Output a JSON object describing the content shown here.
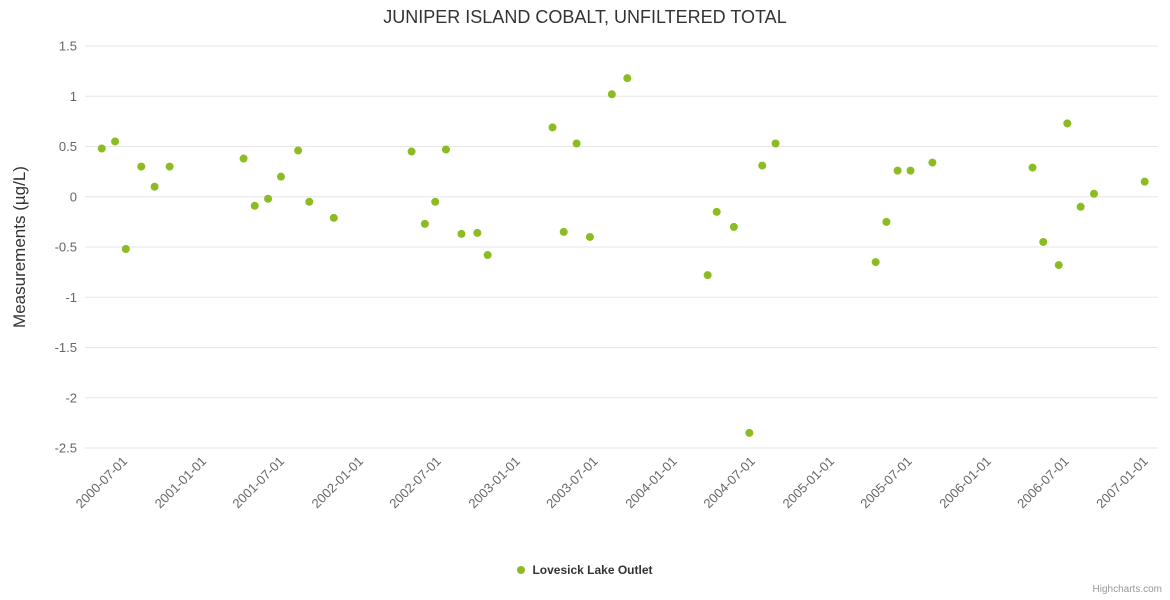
{
  "chart": {
    "title": "JUNIPER ISLAND COBALT, UNFILTERED TOTAL",
    "credits": "Highcharts.com",
    "accent": "#8bbc21"
  },
  "chart_data": {
    "type": "scatter",
    "title": "JUNIPER ISLAND COBALT, UNFILTERED TOTAL",
    "xlabel": "",
    "ylabel": "Measurements (µg/L)",
    "ylim": [
      -2.5,
      1.5
    ],
    "ytick_step": 0.5,
    "xlim": [
      "2000-04-01",
      "2007-02-01"
    ],
    "xticks": [
      "2000-07-01",
      "2001-01-01",
      "2001-07-01",
      "2002-01-01",
      "2002-07-01",
      "2003-01-01",
      "2003-07-01",
      "2004-01-01",
      "2004-07-01",
      "2005-01-01",
      "2005-07-01",
      "2006-01-01",
      "2006-07-01",
      "2007-01-01"
    ],
    "grid": "horizontal",
    "legend_position": "bottom",
    "series": [
      {
        "name": "Lovesick Lake Outlet",
        "color": "#8bbc21",
        "points": [
          [
            "2000-05-10",
            0.48
          ],
          [
            "2000-06-10",
            0.55
          ],
          [
            "2000-07-05",
            -0.52
          ],
          [
            "2000-08-10",
            0.3
          ],
          [
            "2000-09-10",
            0.1
          ],
          [
            "2000-10-15",
            0.3
          ],
          [
            "2001-04-05",
            0.38
          ],
          [
            "2001-05-01",
            -0.09
          ],
          [
            "2001-06-01",
            -0.02
          ],
          [
            "2001-07-01",
            0.2
          ],
          [
            "2001-08-10",
            0.46
          ],
          [
            "2001-09-05",
            -0.05
          ],
          [
            "2001-11-01",
            -0.21
          ],
          [
            "2002-05-01",
            0.45
          ],
          [
            "2002-06-01",
            -0.27
          ],
          [
            "2002-06-25",
            -0.05
          ],
          [
            "2002-07-20",
            0.47
          ],
          [
            "2002-08-25",
            -0.37
          ],
          [
            "2002-10-01",
            -0.36
          ],
          [
            "2002-10-25",
            -0.58
          ],
          [
            "2003-03-25",
            0.69
          ],
          [
            "2003-04-20",
            -0.35
          ],
          [
            "2003-05-20",
            0.53
          ],
          [
            "2003-06-20",
            -0.4
          ],
          [
            "2003-08-10",
            1.02
          ],
          [
            "2003-09-15",
            1.18
          ],
          [
            "2004-03-20",
            -0.78
          ],
          [
            "2004-04-10",
            -0.15
          ],
          [
            "2004-05-20",
            -0.3
          ],
          [
            "2004-06-25",
            -2.35
          ],
          [
            "2004-07-25",
            0.31
          ],
          [
            "2004-08-25",
            0.53
          ],
          [
            "2005-04-15",
            -0.65
          ],
          [
            "2005-05-10",
            -0.25
          ],
          [
            "2005-06-05",
            0.26
          ],
          [
            "2005-07-05",
            0.26
          ],
          [
            "2005-08-25",
            0.34
          ],
          [
            "2006-04-15",
            0.29
          ],
          [
            "2006-05-10",
            -0.45
          ],
          [
            "2006-06-15",
            -0.68
          ],
          [
            "2006-07-05",
            0.73
          ],
          [
            "2006-08-05",
            -0.1
          ],
          [
            "2006-09-05",
            0.03
          ],
          [
            "2007-01-01",
            0.15
          ]
        ]
      }
    ]
  }
}
